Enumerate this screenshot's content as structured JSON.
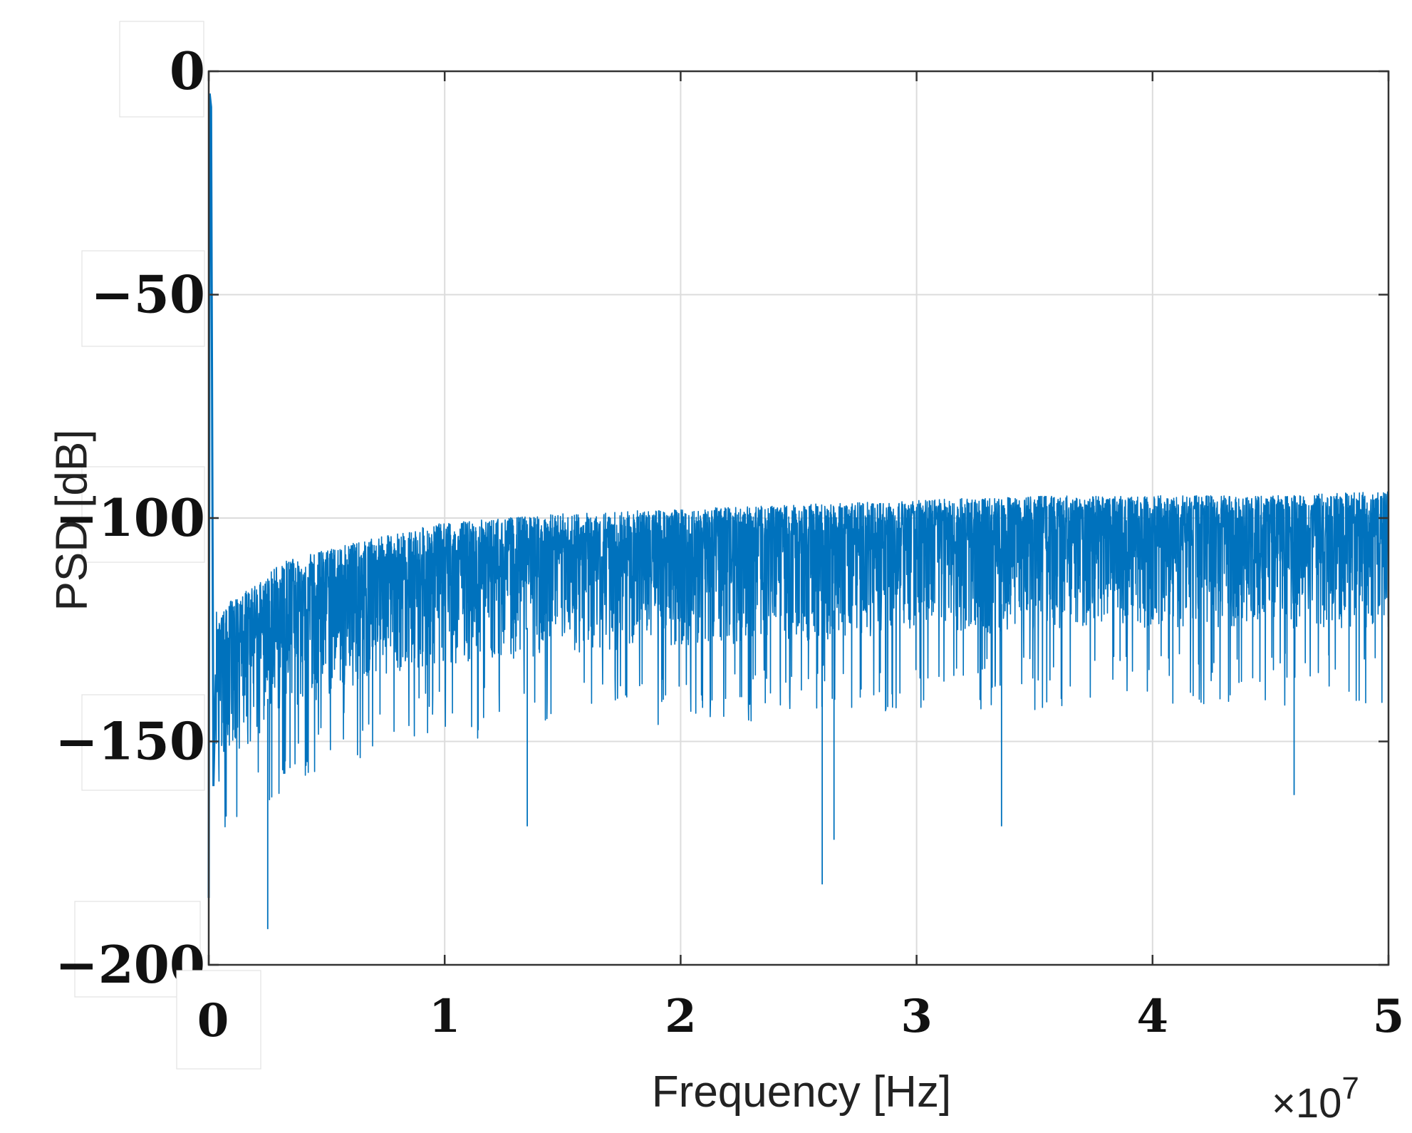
{
  "chart_data": {
    "type": "line",
    "xlabel": "Frequency [Hz]",
    "ylabel": "PSD [dB]",
    "x_exponent_label": "×10",
    "x_exponent_power": "7",
    "xlim": [
      0,
      5
    ],
    "ylim": [
      -200,
      0
    ],
    "x_ticks": [
      "0",
      "1",
      "2",
      "3",
      "4",
      "5"
    ],
    "y_ticks": [
      "0",
      "−50",
      "−100",
      "−150",
      "−200"
    ],
    "grid": true,
    "line_color": "#0072bd",
    "series": [
      {
        "envelope": {
          "x": [
            0.0,
            0.02,
            0.05,
            0.1,
            0.2,
            0.3,
            0.5,
            0.75,
            1.0,
            1.5,
            2.0,
            2.5,
            3.0,
            3.5,
            4.0,
            4.5,
            5.0
          ],
          "y_upper": [
            -8,
            -120,
            -122,
            -118,
            -115,
            -110,
            -107,
            -104,
            -101,
            -99,
            -98,
            -97,
            -96,
            -95,
            -95,
            -95,
            -94
          ],
          "y_mean": [
            -5,
            -140,
            -135,
            -130,
            -126,
            -122,
            -118,
            -114,
            -112,
            -109,
            -107,
            -106,
            -105,
            -104,
            -103,
            -103,
            -103
          ],
          "y_lower": [
            -185,
            -170,
            -165,
            -160,
            -155,
            -150,
            -145,
            -140,
            -138,
            -136,
            -134,
            -133,
            -132,
            -131,
            -130,
            -130,
            -130
          ]
        },
        "notable_dips": [
          {
            "x": 0.25,
            "y": -192
          },
          {
            "x": 1.35,
            "y": -169
          },
          {
            "x": 2.6,
            "y": -182
          },
          {
            "x": 2.65,
            "y": -172
          },
          {
            "x": 3.36,
            "y": -169
          },
          {
            "x": 4.6,
            "y": -162
          }
        ]
      }
    ]
  }
}
